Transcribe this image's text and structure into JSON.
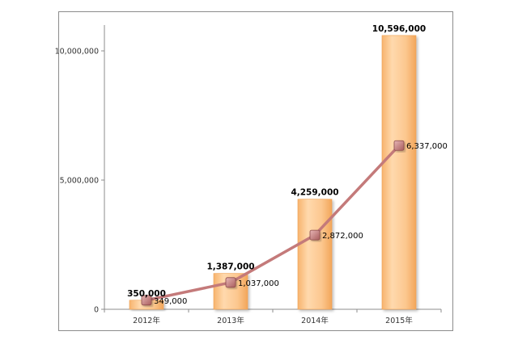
{
  "chart_data": {
    "type": "bar",
    "categories": [
      "2012年",
      "2013年",
      "2014年",
      "2015年"
    ],
    "ylim": [
      0,
      11000000
    ],
    "yticks": [
      {
        "value": 0,
        "label": "0"
      },
      {
        "value": 5000000,
        "label": "5,000,000"
      },
      {
        "value": 10000000,
        "label": "10,000,000"
      }
    ],
    "grid": false,
    "legend": "none",
    "series": [
      {
        "type": "bar",
        "values": [
          350000,
          1387000,
          4259000,
          10596000
        ],
        "labels": [
          "350,000",
          "1,387,000",
          "4,259,000",
          "10,596,000"
        ],
        "color": "#fcc78f"
      },
      {
        "type": "line",
        "values": [
          349000,
          1037000,
          2872000,
          6337000
        ],
        "labels": [
          "349,000",
          "1,037,000",
          "2,872,000",
          "6,337,000"
        ],
        "color": "#c47a7a"
      }
    ]
  }
}
